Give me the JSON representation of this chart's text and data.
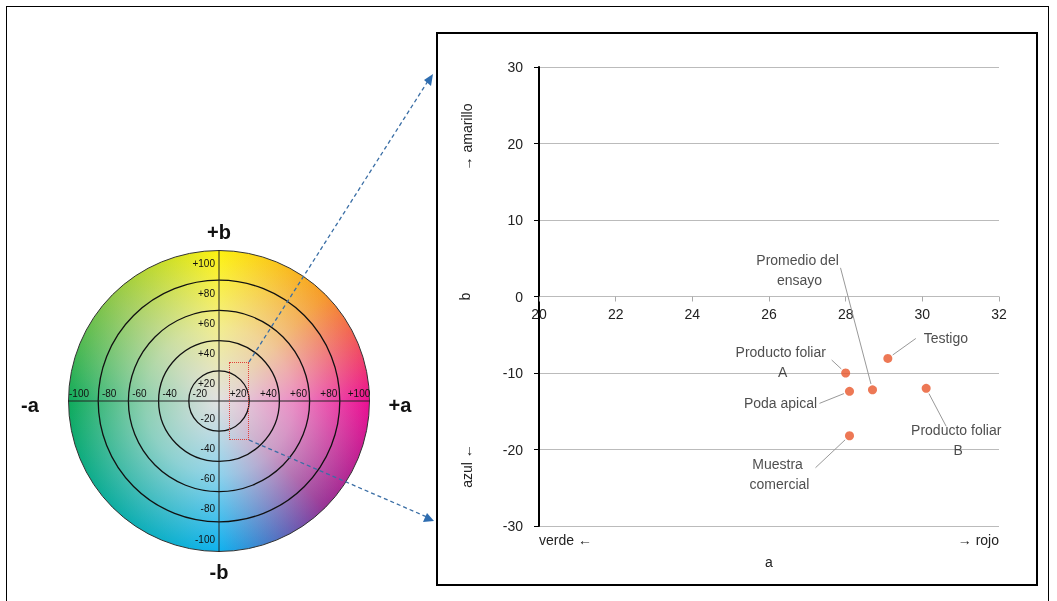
{
  "chart_data": [
    {
      "type": "other",
      "annotations": [
        "+b",
        "-b",
        "-a",
        "+a",
        "-100",
        "-80",
        "-60",
        "-40",
        "-20",
        "+20",
        "+40",
        "+60",
        "+80",
        "+100",
        "+100",
        "+80",
        "+60",
        "+40",
        "+20",
        "-20",
        "-40",
        "-60",
        "-80",
        "-100"
      ]
    },
    {
      "type": "scatter",
      "xlabel": "a",
      "ylabel": "b",
      "marker": "circle",
      "grid": "y",
      "xlim": [
        20,
        32
      ],
      "xticks": [
        20,
        22,
        24,
        26,
        28,
        30,
        32
      ],
      "ylim": [
        -30,
        30
      ],
      "yticks": [
        -30,
        -20,
        -10,
        0,
        10,
        20,
        30
      ],
      "series": [
        {
          "name": "Testigo",
          "color": "#e8562a",
          "x": [
            29.1
          ],
          "values": [
            -8.1
          ]
        },
        {
          "name": "Producto foliar A",
          "color": "#e8562a",
          "x": [
            28.0
          ],
          "values": [
            -10.0
          ]
        },
        {
          "name": "Poda apical",
          "color": "#e8562a",
          "x": [
            28.1
          ],
          "values": [
            -12.4
          ]
        },
        {
          "name": "Promedio del ensayo",
          "color": "#e8562a",
          "x": [
            28.7
          ],
          "values": [
            -12.2
          ]
        },
        {
          "name": "Producto foliar B",
          "color": "#e8562a",
          "x": [
            30.1
          ],
          "values": [
            -12.0
          ]
        },
        {
          "name": "Muestra comercial",
          "color": "#e8562a",
          "x": [
            28.1
          ],
          "values": [
            -18.2
          ]
        }
      ],
      "annotations": [
        "→ amarillo",
        "azul ←",
        "verde ←",
        "→ rojo"
      ]
    }
  ]
}
